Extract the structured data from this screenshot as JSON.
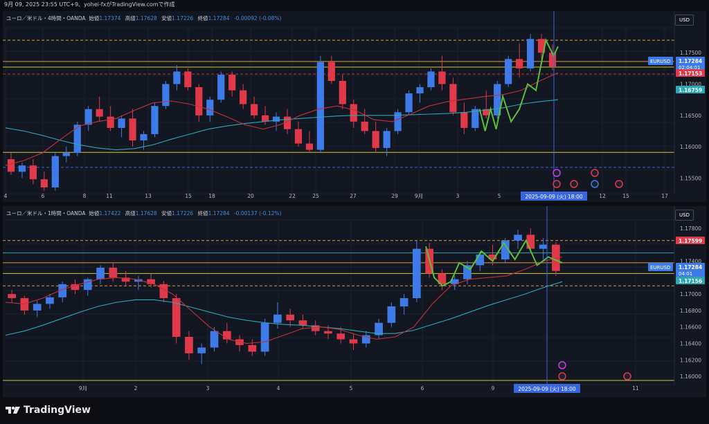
{
  "header": {
    "text": "9月 09, 2025 23:55 UTC+9、yohei-fxがTradingView.comで作成"
  },
  "colors": {
    "bg": "#131722",
    "up": "#3e7be8",
    "down": "#e0394a",
    "sma_red": "#c2303a",
    "sma_teal": "#2aa8b5",
    "hline_yellow": "#d4c634",
    "hline_orange": "#e09a3a",
    "hline_red": "#b8343c",
    "hline_teal": "#2aa8b5",
    "wave": "#5bbf3a",
    "cursor": "#3a66e0"
  },
  "chart_data": [
    {
      "type": "candlestick",
      "symbol": "EURUSD",
      "legend": {
        "title": "ユーロ／米ドル・4時間・OANDA",
        "open_label": "始値",
        "open": "1.17374",
        "high_label": "高値",
        "high": "1.17628",
        "low_label": "安値",
        "low": "1.17226",
        "close_label": "終値",
        "close": "1.17284",
        "change": "-0.00092 (-0.08%)"
      },
      "ylim": [
        1.1525,
        1.179
      ],
      "y_ticks": [
        "1.17500",
        "1.17000",
        "1.16500",
        "1.16000",
        "1.15500"
      ],
      "x_ticks": [
        "4",
        "6",
        "8",
        "11",
        "13",
        "15",
        "18",
        "20",
        "22",
        "25",
        "27",
        "29",
        "9月",
        "3",
        "5",
        "12",
        "15",
        "17"
      ],
      "cursor_label": "2025-09-09 (火)  18:00",
      "currency_button": "USD",
      "price_tags": [
        {
          "label": "EURUSD",
          "value": "1.17284",
          "sub": "02:04:01",
          "color": "#3e7be8"
        },
        {
          "value": "1.17153",
          "color": "#e0394a"
        },
        {
          "value": "1.16759",
          "color": "#2aa8b5"
        }
      ],
      "hlines": [
        {
          "price": 1.177,
          "color": "#e09a3a",
          "style": "dashed"
        },
        {
          "price": 1.1736,
          "color": "#e09a3a",
          "style": "solid"
        },
        {
          "price": 1.1727,
          "color": "#d4c634",
          "style": "solid"
        },
        {
          "price": 1.1716,
          "color": "#b8343c",
          "style": "dashed"
        },
        {
          "price": 1.1591,
          "color": "#d4c634",
          "style": "solid"
        },
        {
          "price": 1.1567,
          "color": "#3a66e0",
          "style": "dashed"
        }
      ],
      "sma_fast": [
        1.157,
        1.1578,
        1.159,
        1.1612,
        1.1633,
        1.164,
        1.1645,
        1.1658,
        1.167,
        1.1673,
        1.1668,
        1.166,
        1.1648,
        1.1635,
        1.1628,
        1.1636,
        1.165,
        1.166,
        1.1665,
        1.1658,
        1.1643,
        1.164,
        1.1652,
        1.1665,
        1.1672,
        1.1676,
        1.168,
        1.1683,
        1.169,
        1.1705,
        1.1718
      ],
      "sma_slow": [
        1.163,
        1.1625,
        1.1618,
        1.161,
        1.1603,
        1.1598,
        1.1595,
        1.1597,
        1.1603,
        1.1612,
        1.162,
        1.1628,
        1.1633,
        1.1637,
        1.164,
        1.1643,
        1.1645,
        1.1647,
        1.1649,
        1.165,
        1.165,
        1.165,
        1.1651,
        1.1652,
        1.1653,
        1.1655,
        1.1658,
        1.1662,
        1.1668,
        1.1672,
        1.1675
      ],
      "wave": [
        [
          0.858,
          1.166
        ],
        [
          0.868,
          1.1625
        ],
        [
          0.878,
          1.166
        ],
        [
          0.888,
          1.1628
        ],
        [
          0.9,
          1.168
        ],
        [
          0.915,
          1.164
        ],
        [
          0.93,
          1.166
        ],
        [
          0.945,
          1.17
        ],
        [
          0.96,
          1.169
        ],
        [
          0.978,
          1.177
        ],
        [
          0.992,
          1.1745
        ],
        [
          1.0,
          1.176
        ]
      ],
      "candles": [
        {
          "o": 1.158,
          "h": 1.159,
          "l": 1.1555,
          "c": 1.156
        },
        {
          "o": 1.156,
          "h": 1.1575,
          "l": 1.155,
          "c": 1.157
        },
        {
          "o": 1.157,
          "h": 1.158,
          "l": 1.154,
          "c": 1.1548
        },
        {
          "o": 1.1548,
          "h": 1.156,
          "l": 1.153,
          "c": 1.1535
        },
        {
          "o": 1.1535,
          "h": 1.159,
          "l": 1.153,
          "c": 1.1585
        },
        {
          "o": 1.1585,
          "h": 1.16,
          "l": 1.1575,
          "c": 1.159
        },
        {
          "o": 1.159,
          "h": 1.164,
          "l": 1.1585,
          "c": 1.1635
        },
        {
          "o": 1.1635,
          "h": 1.1665,
          "l": 1.1625,
          "c": 1.166
        },
        {
          "o": 1.166,
          "h": 1.168,
          "l": 1.164,
          "c": 1.1648
        },
        {
          "o": 1.1648,
          "h": 1.1665,
          "l": 1.1625,
          "c": 1.163
        },
        {
          "o": 1.163,
          "h": 1.165,
          "l": 1.1615,
          "c": 1.1645
        },
        {
          "o": 1.1645,
          "h": 1.166,
          "l": 1.16,
          "c": 1.161
        },
        {
          "o": 1.161,
          "h": 1.1625,
          "l": 1.1595,
          "c": 1.162
        },
        {
          "o": 1.162,
          "h": 1.167,
          "l": 1.1615,
          "c": 1.1665
        },
        {
          "o": 1.1665,
          "h": 1.1705,
          "l": 1.166,
          "c": 1.17
        },
        {
          "o": 1.17,
          "h": 1.173,
          "l": 1.169,
          "c": 1.172
        },
        {
          "o": 1.172,
          "h": 1.1725,
          "l": 1.169,
          "c": 1.1695
        },
        {
          "o": 1.1695,
          "h": 1.17,
          "l": 1.164,
          "c": 1.165
        },
        {
          "o": 1.165,
          "h": 1.168,
          "l": 1.164,
          "c": 1.1675
        },
        {
          "o": 1.1675,
          "h": 1.172,
          "l": 1.167,
          "c": 1.1715
        },
        {
          "o": 1.1715,
          "h": 1.172,
          "l": 1.168,
          "c": 1.169
        },
        {
          "o": 1.169,
          "h": 1.17,
          "l": 1.166,
          "c": 1.1668
        },
        {
          "o": 1.1668,
          "h": 1.168,
          "l": 1.1645,
          "c": 1.165
        },
        {
          "o": 1.165,
          "h": 1.1665,
          "l": 1.1635,
          "c": 1.164
        },
        {
          "o": 1.164,
          "h": 1.1655,
          "l": 1.1625,
          "c": 1.1648
        },
        {
          "o": 1.1648,
          "h": 1.166,
          "l": 1.162,
          "c": 1.1628
        },
        {
          "o": 1.1628,
          "h": 1.164,
          "l": 1.16,
          "c": 1.1605
        },
        {
          "o": 1.1605,
          "h": 1.1625,
          "l": 1.159,
          "c": 1.1595
        },
        {
          "o": 1.1595,
          "h": 1.1745,
          "l": 1.159,
          "c": 1.1735
        },
        {
          "o": 1.1735,
          "h": 1.1745,
          "l": 1.17,
          "c": 1.1705
        },
        {
          "o": 1.1705,
          "h": 1.1715,
          "l": 1.166,
          "c": 1.1668
        },
        {
          "o": 1.1668,
          "h": 1.1675,
          "l": 1.163,
          "c": 1.164
        },
        {
          "o": 1.164,
          "h": 1.166,
          "l": 1.162,
          "c": 1.1625
        },
        {
          "o": 1.1625,
          "h": 1.164,
          "l": 1.159,
          "c": 1.1598
        },
        {
          "o": 1.1598,
          "h": 1.163,
          "l": 1.1585,
          "c": 1.1625
        },
        {
          "o": 1.1625,
          "h": 1.166,
          "l": 1.162,
          "c": 1.1655
        },
        {
          "o": 1.1655,
          "h": 1.169,
          "l": 1.165,
          "c": 1.1685
        },
        {
          "o": 1.1685,
          "h": 1.17,
          "l": 1.167,
          "c": 1.1695
        },
        {
          "o": 1.1695,
          "h": 1.1725,
          "l": 1.169,
          "c": 1.172
        },
        {
          "o": 1.172,
          "h": 1.1745,
          "l": 1.169,
          "c": 1.17
        },
        {
          "o": 1.17,
          "h": 1.171,
          "l": 1.165,
          "c": 1.1655
        },
        {
          "o": 1.1655,
          "h": 1.167,
          "l": 1.162,
          "c": 1.163
        },
        {
          "o": 1.163,
          "h": 1.1665,
          "l": 1.1625,
          "c": 1.166
        },
        {
          "o": 1.166,
          "h": 1.169,
          "l": 1.1645,
          "c": 1.165
        },
        {
          "o": 1.165,
          "h": 1.1705,
          "l": 1.1645,
          "c": 1.17
        },
        {
          "o": 1.17,
          "h": 1.1745,
          "l": 1.1695,
          "c": 1.174
        },
        {
          "o": 1.174,
          "h": 1.1765,
          "l": 1.171,
          "c": 1.1725
        },
        {
          "o": 1.1725,
          "h": 1.178,
          "l": 1.172,
          "c": 1.1772
        },
        {
          "o": 1.1772,
          "h": 1.178,
          "l": 1.174,
          "c": 1.175
        },
        {
          "o": 1.175,
          "h": 1.1763,
          "l": 1.1722,
          "c": 1.1728
        }
      ]
    },
    {
      "type": "candlestick",
      "symbol": "EURUSD",
      "legend": {
        "title": "ユーロ／米ドル・1時間・OANDA",
        "open_label": "始値",
        "open": "1.17422",
        "high_label": "高値",
        "high": "1.17628",
        "low_label": "安値",
        "low": "1.17226",
        "close_label": "終値",
        "close": "1.17284",
        "change": "-0.00137 (-0.12%)"
      },
      "ylim": [
        1.159,
        1.179
      ],
      "y_ticks": [
        "1.17800",
        "1.17400",
        "1.17000",
        "1.16800",
        "1.16600",
        "1.16400",
        "1.16200",
        "1.16000"
      ],
      "x_ticks": [
        "9月",
        "2",
        "3",
        "4",
        "5",
        "6",
        "9",
        "11"
      ],
      "cursor_label": "2025-09-09 (火)  18:00",
      "currency_button": "USD",
      "price_tags": [
        {
          "value": "1.17599",
          "color": "#e0394a"
        },
        {
          "label": "EURUSD",
          "value": "1.17284",
          "sub": "04:01",
          "color": "#3e7be8"
        },
        {
          "value": "1.17156",
          "color": "#2aa8b5"
        }
      ],
      "hlines": [
        {
          "price": 1.1765,
          "color": "#e09a3a",
          "style": "dashed"
        },
        {
          "price": 1.175,
          "color": "#2aa8b5",
          "style": "solid"
        },
        {
          "price": 1.1738,
          "color": "#e09a3a",
          "style": "solid"
        },
        {
          "price": 1.1725,
          "color": "#d4c634",
          "style": "solid"
        },
        {
          "price": 1.171,
          "color": "#e09a3a",
          "style": "dashed"
        },
        {
          "price": 1.1595,
          "color": "#d4c634",
          "style": "solid"
        }
      ],
      "sma_fast": [
        1.169,
        1.1688,
        1.1695,
        1.1705,
        1.1712,
        1.1718,
        1.172,
        1.1718,
        1.1712,
        1.17,
        1.168,
        1.166,
        1.1645,
        1.164,
        1.1642,
        1.165,
        1.1658,
        1.166,
        1.1657,
        1.165,
        1.1645,
        1.1648,
        1.166,
        1.1688,
        1.171,
        1.1718,
        1.172,
        1.1722,
        1.173,
        1.174,
        1.1745
      ],
      "sma_slow": [
        1.165,
        1.1655,
        1.1662,
        1.167,
        1.1678,
        1.1685,
        1.169,
        1.1693,
        1.1693,
        1.169,
        1.1684,
        1.1678,
        1.1672,
        1.1668,
        1.1665,
        1.1663,
        1.1662,
        1.166,
        1.1658,
        1.1655,
        1.1652,
        1.1652,
        1.1656,
        1.1663,
        1.167,
        1.1678,
        1.1686,
        1.1693,
        1.17,
        1.1708,
        1.1715
      ],
      "wave": [
        [
          0.755,
          1.1758
        ],
        [
          0.77,
          1.172
        ],
        [
          0.785,
          1.171
        ],
        [
          0.8,
          1.1715
        ],
        [
          0.815,
          1.1738
        ],
        [
          0.835,
          1.173
        ],
        [
          0.855,
          1.1752
        ],
        [
          0.875,
          1.174
        ],
        [
          0.895,
          1.1762
        ],
        [
          0.915,
          1.1742
        ],
        [
          0.935,
          1.1765
        ],
        [
          0.955,
          1.1735
        ],
        [
          0.975,
          1.1745
        ],
        [
          1.0,
          1.1738
        ]
      ],
      "candles": [
        {
          "o": 1.17,
          "h": 1.1705,
          "l": 1.169,
          "c": 1.1695
        },
        {
          "o": 1.1695,
          "h": 1.1698,
          "l": 1.1675,
          "c": 1.168
        },
        {
          "o": 1.168,
          "h": 1.1692,
          "l": 1.1672,
          "c": 1.1688
        },
        {
          "o": 1.1688,
          "h": 1.17,
          "l": 1.1682,
          "c": 1.1696
        },
        {
          "o": 1.1696,
          "h": 1.1715,
          "l": 1.169,
          "c": 1.1712
        },
        {
          "o": 1.1712,
          "h": 1.1718,
          "l": 1.17,
          "c": 1.1705
        },
        {
          "o": 1.1705,
          "h": 1.172,
          "l": 1.1698,
          "c": 1.1718
        },
        {
          "o": 1.1718,
          "h": 1.1735,
          "l": 1.1712,
          "c": 1.1732
        },
        {
          "o": 1.1732,
          "h": 1.1738,
          "l": 1.1715,
          "c": 1.172
        },
        {
          "o": 1.172,
          "h": 1.1728,
          "l": 1.171,
          "c": 1.1715
        },
        {
          "o": 1.1715,
          "h": 1.1722,
          "l": 1.1705,
          "c": 1.1718
        },
        {
          "o": 1.1718,
          "h": 1.1725,
          "l": 1.1708,
          "c": 1.1712
        },
        {
          "o": 1.1712,
          "h": 1.1716,
          "l": 1.169,
          "c": 1.1695
        },
        {
          "o": 1.1695,
          "h": 1.17,
          "l": 1.164,
          "c": 1.1648
        },
        {
          "o": 1.1648,
          "h": 1.1655,
          "l": 1.162,
          "c": 1.1628
        },
        {
          "o": 1.1628,
          "h": 1.164,
          "l": 1.1615,
          "c": 1.1635
        },
        {
          "o": 1.1635,
          "h": 1.166,
          "l": 1.163,
          "c": 1.1655
        },
        {
          "o": 1.1655,
          "h": 1.1665,
          "l": 1.164,
          "c": 1.1645
        },
        {
          "o": 1.1645,
          "h": 1.165,
          "l": 1.163,
          "c": 1.1638
        },
        {
          "o": 1.1638,
          "h": 1.1645,
          "l": 1.1625,
          "c": 1.163
        },
        {
          "o": 1.163,
          "h": 1.167,
          "l": 1.1625,
          "c": 1.1665
        },
        {
          "o": 1.1665,
          "h": 1.169,
          "l": 1.1658,
          "c": 1.1675
        },
        {
          "o": 1.1675,
          "h": 1.1682,
          "l": 1.166,
          "c": 1.1668
        },
        {
          "o": 1.1668,
          "h": 1.1675,
          "l": 1.1658,
          "c": 1.1662
        },
        {
          "o": 1.1662,
          "h": 1.1668,
          "l": 1.165,
          "c": 1.1655
        },
        {
          "o": 1.1655,
          "h": 1.1662,
          "l": 1.1645,
          "c": 1.1652
        },
        {
          "o": 1.1652,
          "h": 1.166,
          "l": 1.164,
          "c": 1.1645
        },
        {
          "o": 1.1645,
          "h": 1.1652,
          "l": 1.1632,
          "c": 1.164
        },
        {
          "o": 1.164,
          "h": 1.1655,
          "l": 1.1635,
          "c": 1.165
        },
        {
          "o": 1.165,
          "h": 1.167,
          "l": 1.1645,
          "c": 1.1665
        },
        {
          "o": 1.1665,
          "h": 1.169,
          "l": 1.166,
          "c": 1.1685
        },
        {
          "o": 1.1685,
          "h": 1.17,
          "l": 1.1675,
          "c": 1.1695
        },
        {
          "o": 1.1695,
          "h": 1.1765,
          "l": 1.169,
          "c": 1.1755
        },
        {
          "o": 1.1755,
          "h": 1.1762,
          "l": 1.172,
          "c": 1.1725
        },
        {
          "o": 1.1725,
          "h": 1.173,
          "l": 1.1705,
          "c": 1.1712
        },
        {
          "o": 1.1712,
          "h": 1.1722,
          "l": 1.1705,
          "c": 1.1718
        },
        {
          "o": 1.1718,
          "h": 1.174,
          "l": 1.1712,
          "c": 1.1735
        },
        {
          "o": 1.1735,
          "h": 1.1752,
          "l": 1.1728,
          "c": 1.1748
        },
        {
          "o": 1.1748,
          "h": 1.176,
          "l": 1.1735,
          "c": 1.1742
        },
        {
          "o": 1.1742,
          "h": 1.1768,
          "l": 1.1738,
          "c": 1.1765
        },
        {
          "o": 1.1765,
          "h": 1.1778,
          "l": 1.1755,
          "c": 1.1772
        },
        {
          "o": 1.1772,
          "h": 1.178,
          "l": 1.175,
          "c": 1.1755
        },
        {
          "o": 1.1755,
          "h": 1.1768,
          "l": 1.1742,
          "c": 1.176
        },
        {
          "o": 1.176,
          "h": 1.1763,
          "l": 1.1722,
          "c": 1.1728
        }
      ]
    }
  ],
  "footer": {
    "brand": "TradingView"
  }
}
